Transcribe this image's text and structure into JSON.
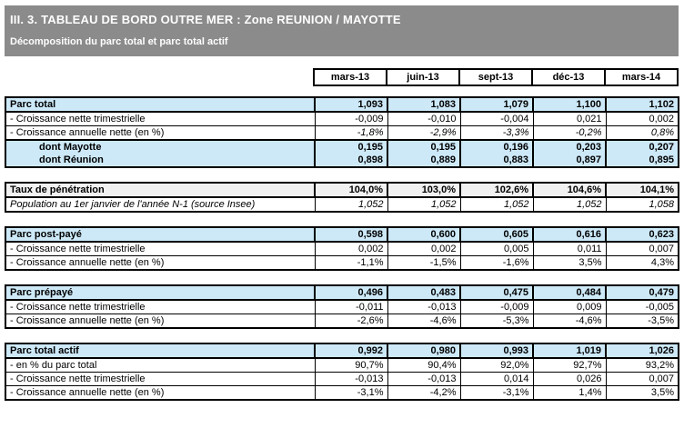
{
  "header": {
    "title": "III. 3. TABLEAU DE BORD OUTRE MER : Zone REUNION / MAYOTTE",
    "subtitle": "Décomposition du parc total et parc total actif",
    "bar_color": "#8b8b8b",
    "text_color": "#ffffff"
  },
  "colors": {
    "section_header_bg": "#cde9f8",
    "gray_header_bg": "#f1f1f1",
    "border": "#000000"
  },
  "chart_data": {
    "type": "table",
    "title": "III. 3. TABLEAU DE BORD OUTRE MER : Zone REUNION / MAYOTTE",
    "subtitle": "Décomposition du parc total et parc total actif",
    "columns": [
      "mars-13",
      "juin-13",
      "sept-13",
      "déc-13",
      "mars-14"
    ],
    "sections": [
      {
        "id": "parc-total",
        "rows": [
          {
            "label": "Parc total",
            "variant": "section-header",
            "values": [
              "1,093",
              "1,083",
              "1,079",
              "1,100",
              "1,102"
            ]
          },
          {
            "label": "- Croissance nette trimestrielle",
            "variant": "plain no-top",
            "values": [
              "-0,009",
              "-0,010",
              "-0,004",
              "0,021",
              "0,002"
            ]
          },
          {
            "label": "- Croissance annuelle nette (en %)",
            "variant": "plain italic-values",
            "values": [
              "-1,8%",
              "-2,9%",
              "-3,3%",
              "-0,2%",
              "0,8%"
            ]
          },
          {
            "label": "dont Mayotte",
            "variant": "subtotal block-top",
            "values": [
              "0,195",
              "0,195",
              "0,196",
              "0,203",
              "0,207"
            ]
          },
          {
            "label": "dont Réunion",
            "variant": "subtotal",
            "values": [
              "0,898",
              "0,889",
              "0,883",
              "0,897",
              "0,895"
            ]
          }
        ]
      },
      {
        "id": "taux-penetration",
        "rows": [
          {
            "label": "Taux de pénétration",
            "variant": "gray-header",
            "values": [
              "104,0%",
              "103,0%",
              "102,6%",
              "104,6%",
              "104,1%"
            ]
          },
          {
            "label": "Population au 1er janvier de l'année N-1 (source Insee)",
            "variant": "plain no-top italic-row",
            "values": [
              "1,052",
              "1,052",
              "1,052",
              "1,052",
              "1,058"
            ]
          }
        ]
      },
      {
        "id": "parc-post-paye",
        "rows": [
          {
            "label": "Parc post-payé",
            "variant": "section-header",
            "values": [
              "0,598",
              "0,600",
              "0,605",
              "0,616",
              "0,623"
            ]
          },
          {
            "label": "- Croissance nette trimestrielle",
            "variant": "plain no-top",
            "values": [
              "0,002",
              "0,002",
              "0,005",
              "0,011",
              "0,007"
            ]
          },
          {
            "label": "- Croissance annuelle nette (en %)",
            "variant": "plain",
            "values": [
              "-1,1%",
              "-1,5%",
              "-1,6%",
              "3,5%",
              "4,3%"
            ]
          }
        ]
      },
      {
        "id": "parc-prepaye",
        "rows": [
          {
            "label": "Parc prépayé",
            "variant": "section-header",
            "values": [
              "0,496",
              "0,483",
              "0,475",
              "0,484",
              "0,479"
            ]
          },
          {
            "label": "- Croissance nette trimestrielle",
            "variant": "plain no-top",
            "values": [
              "-0,011",
              "-0,013",
              "-0,009",
              "0,009",
              "-0,005"
            ]
          },
          {
            "label": "- Croissance annuelle nette (en %)",
            "variant": "plain",
            "values": [
              "-2,6%",
              "-4,6%",
              "-5,3%",
              "-4,6%",
              "-3,5%"
            ]
          }
        ]
      },
      {
        "id": "parc-total-actif",
        "rows": [
          {
            "label": "Parc total actif",
            "variant": "section-header",
            "values": [
              "0,992",
              "0,980",
              "0,993",
              "1,019",
              "1,026"
            ]
          },
          {
            "label": "- en % du parc total",
            "variant": "plain no-top",
            "values": [
              "90,7%",
              "90,4%",
              "92,0%",
              "92,7%",
              "93,2%"
            ]
          },
          {
            "label": "- Croissance nette trimestrielle",
            "variant": "plain",
            "values": [
              "-0,013",
              "-0,013",
              "0,014",
              "0,026",
              "0,007"
            ]
          },
          {
            "label": "- Croissance annuelle nette (en %)",
            "variant": "plain",
            "values": [
              "-3,1%",
              "-4,2%",
              "-3,1%",
              "1,4%",
              "3,5%"
            ]
          }
        ]
      }
    ]
  }
}
